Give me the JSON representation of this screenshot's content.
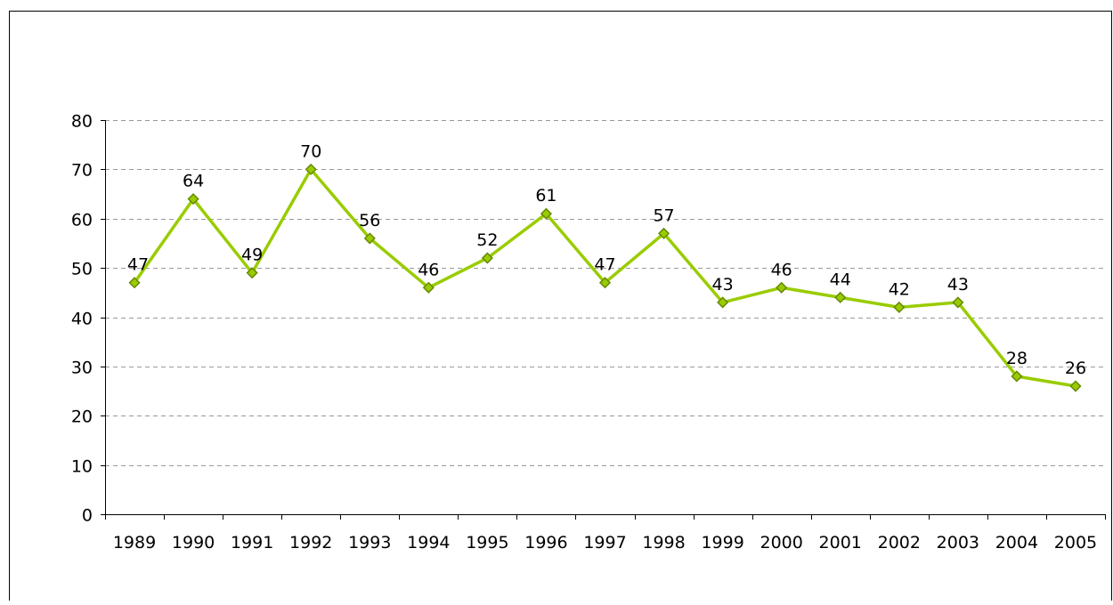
{
  "chart_data": {
    "type": "line",
    "title": "",
    "xlabel": "",
    "ylabel": "",
    "categories": [
      "1989",
      "1990",
      "1991",
      "1992",
      "1993",
      "1994",
      "1995",
      "1996",
      "1997",
      "1998",
      "1999",
      "2000",
      "2001",
      "2002",
      "2003",
      "2004",
      "2005"
    ],
    "series": [
      {
        "values": [
          47,
          64,
          49,
          70,
          56,
          46,
          52,
          61,
          47,
          57,
          43,
          46,
          44,
          42,
          43,
          28,
          26
        ]
      }
    ],
    "data_labels": [
      "47",
      "64",
      "49",
      "70",
      "56",
      "46",
      "52",
      "61",
      "47",
      "57",
      "43",
      "46",
      "44",
      "42",
      "43",
      "28",
      "26"
    ],
    "ylim": [
      0,
      80
    ],
    "yticks": [
      "0",
      "10",
      "20",
      "30",
      "40",
      "50",
      "60",
      "70",
      "80"
    ],
    "grid": "horizontal dashed",
    "legend": "none",
    "colors": {
      "line": "#99cc00",
      "marker_fill": "#99cc00",
      "marker_stroke": "#668800",
      "grid": "#999999",
      "axis": "#000000"
    }
  }
}
